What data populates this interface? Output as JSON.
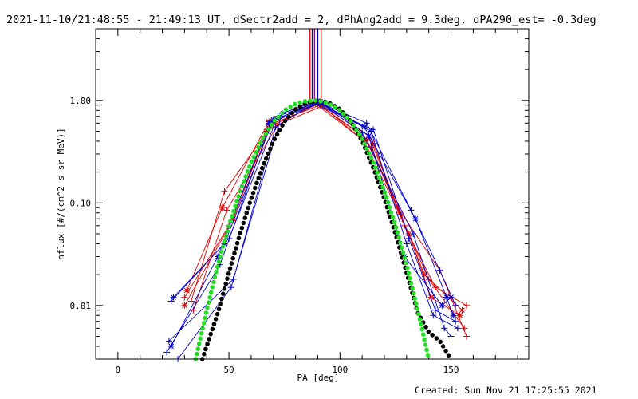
{
  "chart_data": {
    "type": "line",
    "title": "2021-11-10/21:48:55 - 21:49:13 UT, dSectr2add = 2, dPhAng2add = 9.3deg, dPA290_est= -0.3deg",
    "xlabel": "PA [deg]",
    "ylabel": "nflux [#/(cm^2 s sr MeV)]",
    "footer": "Created: Sun Nov 21 17:25:55 2021",
    "xlim": [
      -10,
      185
    ],
    "ylim": [
      0.003,
      5
    ],
    "yscale": "log",
    "grid": false,
    "xticks": [
      0,
      50,
      100,
      150
    ],
    "xtick_labels": [
      "0",
      "50",
      "100",
      "150"
    ],
    "yticks": [
      0.01,
      0.1,
      1.0
    ],
    "ytick_labels": [
      "0.01",
      "0.10",
      "1.00"
    ],
    "colors": {
      "red": "#dd0000",
      "blue": "#0000cc",
      "green": "#22dd22",
      "black": "#000000",
      "purple": "#880088"
    },
    "vertical_lines": [
      {
        "x": 86.5,
        "color": "#dd0000"
      },
      {
        "x": 87.5,
        "color": "#0000cc"
      },
      {
        "x": 88.5,
        "color": "#880088"
      },
      {
        "x": 90.0,
        "color": "#0000cc"
      },
      {
        "x": 91.5,
        "color": "#dd0000"
      }
    ],
    "series": [
      {
        "color": "#dd0000",
        "marker": "plus",
        "x": [
          30,
          50,
          68,
          90,
          112,
          128,
          140,
          156
        ],
        "y": [
          0.012,
          0.06,
          0.55,
          0.92,
          0.42,
          0.07,
          0.018,
          0.006
        ]
      },
      {
        "color": "#dd0000",
        "marker": "star",
        "x": [
          31,
          47,
          68,
          90,
          113,
          127,
          138,
          155
        ],
        "y": [
          0.014,
          0.09,
          0.62,
          0.95,
          0.45,
          0.08,
          0.02,
          0.009
        ]
      },
      {
        "color": "#dd0000",
        "marker": "plus",
        "x": [
          33,
          48,
          70,
          91,
          115,
          129,
          143,
          157
        ],
        "y": [
          0.011,
          0.13,
          0.6,
          0.9,
          0.38,
          0.06,
          0.015,
          0.01
        ]
      },
      {
        "color": "#dd0000",
        "marker": "star",
        "x": [
          30,
          52,
          67,
          89,
          111,
          131,
          141,
          154
        ],
        "y": [
          0.01,
          0.07,
          0.5,
          0.93,
          0.4,
          0.05,
          0.012,
          0.008
        ]
      },
      {
        "color": "#dd0000",
        "marker": "plus",
        "x": [
          34,
          49,
          72,
          92,
          114,
          126,
          145,
          157
        ],
        "y": [
          0.009,
          0.085,
          0.58,
          0.88,
          0.35,
          0.09,
          0.022,
          0.005
        ]
      },
      {
        "color": "#0000cc",
        "marker": "plus",
        "x": [
          24,
          50,
          72,
          90,
          112,
          132,
          145,
          152
        ],
        "y": [
          0.011,
          0.045,
          0.7,
          0.97,
          0.6,
          0.085,
          0.022,
          0.01
        ]
      },
      {
        "color": "#0000cc",
        "marker": "star",
        "x": [
          25,
          48,
          70,
          91,
          111,
          134,
          148,
          151
        ],
        "y": [
          0.012,
          0.04,
          0.65,
          0.95,
          0.55,
          0.07,
          0.012,
          0.008
        ]
      },
      {
        "color": "#0000cc",
        "marker": "plus",
        "x": [
          23,
          52,
          74,
          89,
          114,
          130,
          142,
          153
        ],
        "y": [
          0.0045,
          0.018,
          0.75,
          0.98,
          0.5,
          0.04,
          0.008,
          0.006
        ]
      },
      {
        "color": "#0000cc",
        "marker": "star",
        "x": [
          24,
          45,
          68,
          92,
          113,
          129,
          146,
          150
        ],
        "y": [
          0.004,
          0.03,
          0.6,
          0.96,
          0.45,
          0.03,
          0.01,
          0.012
        ]
      },
      {
        "color": "#0000cc",
        "marker": "plus",
        "x": [
          27,
          51,
          71,
          90,
          110,
          133,
          147,
          150
        ],
        "y": [
          0.003,
          0.015,
          0.55,
          0.99,
          0.48,
          0.05,
          0.006,
          0.005
        ]
      },
      {
        "color": "#0000cc",
        "marker": "plus",
        "x": [
          22,
          46,
          69,
          88,
          115,
          131,
          143,
          152
        ],
        "y": [
          0.0035,
          0.025,
          0.62,
          0.94,
          0.52,
          0.045,
          0.009,
          0.007
        ]
      }
    ],
    "fit_curves": [
      {
        "color": "#000000",
        "style": "thick-dotted",
        "x": [
          38,
          45,
          50,
          55,
          60,
          65,
          70,
          75,
          80,
          85,
          90,
          95,
          100,
          105,
          110,
          115,
          120,
          125,
          130,
          135,
          140,
          145,
          150
        ],
        "y": [
          0.003,
          0.0085,
          0.021,
          0.05,
          0.11,
          0.22,
          0.4,
          0.62,
          0.82,
          0.95,
          1.0,
          0.95,
          0.82,
          0.62,
          0.4,
          0.22,
          0.11,
          0.05,
          0.021,
          0.0085,
          0.0055,
          0.0045,
          0.003
        ]
      },
      {
        "color": "#22dd22",
        "style": "thick-dotted",
        "x": [
          35,
          40,
          45,
          50,
          55,
          60,
          65,
          70,
          75,
          80,
          85,
          90,
          95,
          100,
          105,
          110,
          115,
          120,
          125,
          130,
          135,
          140
        ],
        "y": [
          0.003,
          0.009,
          0.025,
          0.06,
          0.13,
          0.25,
          0.42,
          0.62,
          0.8,
          0.93,
          0.99,
          1.0,
          0.93,
          0.8,
          0.62,
          0.42,
          0.25,
          0.13,
          0.06,
          0.025,
          0.009,
          0.003
        ]
      }
    ]
  }
}
